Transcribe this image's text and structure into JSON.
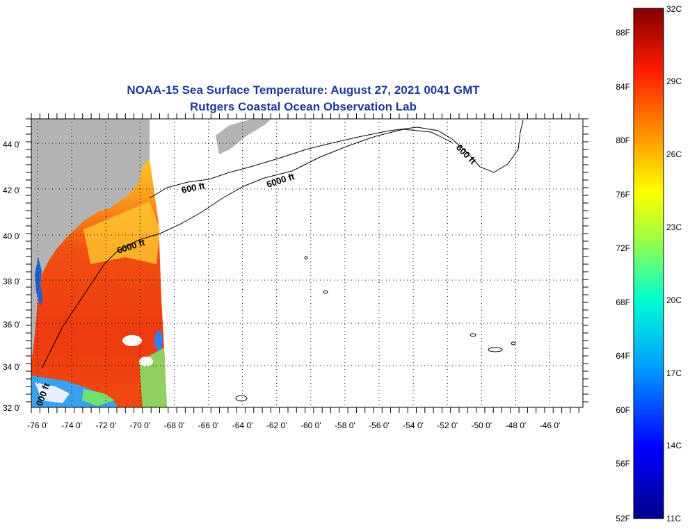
{
  "title": {
    "line1": "NOAA-15 Sea Surface Temperature:  August 27, 2021 0041 GMT",
    "line2": "Rutgers Coastal Ocean Observation Lab"
  },
  "map": {
    "lon_labels": [
      "-76 0'",
      "-74 0'",
      "-72 0'",
      "-70 0'",
      "-68 0'",
      "-66 0'",
      "-64 0'",
      "-62 0'",
      "-60 0'",
      "-58 0'",
      "-56 0'",
      "-54 0'",
      "-52 0'",
      "-50 0'",
      "-48 0'",
      "-46 0'"
    ],
    "lat_labels": [
      "44 0'",
      "42 0'",
      "40 0'",
      "38 0'",
      "36 0'",
      "34 0'",
      "32 0'"
    ],
    "contour_labels": [
      "600 ft",
      "6000 ft",
      "600 ft",
      "6000 ft",
      "000 ft"
    ],
    "colors": {
      "land": "#b4b4b4",
      "ocean_nodata": "#ffffff",
      "warm": "#f04010",
      "mid": "#ffd020"
    }
  },
  "colorbar": {
    "f_labels": [
      "88F",
      "84F",
      "80F",
      "76F",
      "72F",
      "68F",
      "64F",
      "60F",
      "56F",
      "52F"
    ],
    "c_labels": [
      "32C",
      "29C",
      "26C",
      "23C",
      "20C",
      "17C",
      "14C",
      "11C"
    ]
  }
}
